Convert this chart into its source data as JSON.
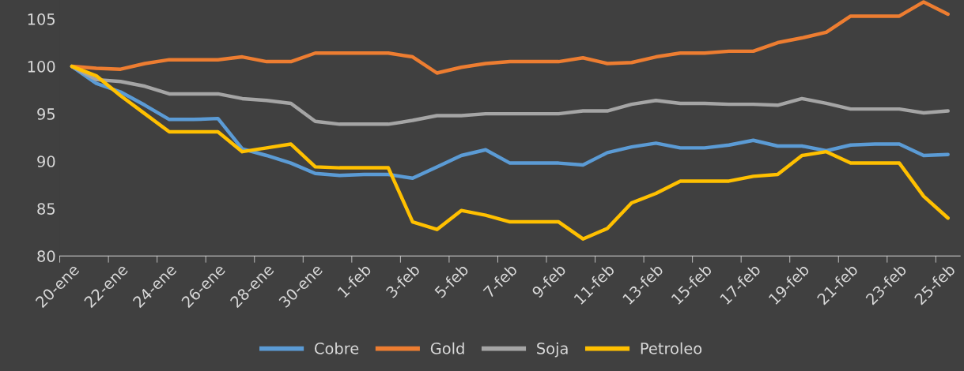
{
  "chart_data": {
    "type": "line",
    "categories": [
      "20-ene",
      null,
      "22-ene",
      null,
      "24-ene",
      null,
      "26-ene",
      null,
      "28-ene",
      null,
      "30-ene",
      null,
      "1-feb",
      null,
      "3-feb",
      null,
      "5-feb",
      null,
      "7-feb",
      null,
      "9-feb",
      null,
      "11-feb",
      null,
      "13-feb",
      null,
      "15-feb",
      null,
      "17-feb",
      null,
      "19-feb",
      null,
      "21-feb",
      null,
      "23-feb",
      null,
      "25-feb"
    ],
    "series": [
      {
        "name": "Cobre",
        "color": "#5b9bd5",
        "values": [
          100,
          98.2,
          97.3,
          95.9,
          94.4,
          94.4,
          94.5,
          91.3,
          90.6,
          89.8,
          88.7,
          88.5,
          88.6,
          88.6,
          88.2,
          89.4,
          90.6,
          91.2,
          89.8,
          89.8,
          89.8,
          89.6,
          90.9,
          91.5,
          91.9,
          91.4,
          91.4,
          91.7,
          92.2,
          91.6,
          91.6,
          91.1,
          91.7,
          91.8,
          91.8,
          90.6,
          90.7
        ]
      },
      {
        "name": "Gold",
        "color": "#ed7d31",
        "values": [
          100,
          99.8,
          99.7,
          100.3,
          100.7,
          100.7,
          100.7,
          101.0,
          100.5,
          100.5,
          101.4,
          101.4,
          101.4,
          101.4,
          101.0,
          99.3,
          99.9,
          100.3,
          100.5,
          100.5,
          100.5,
          100.9,
          100.3,
          100.4,
          101.0,
          101.4,
          101.4,
          101.6,
          101.6,
          102.5,
          103.0,
          103.6,
          105.3,
          105.3,
          105.3,
          106.8,
          105.5
        ]
      },
      {
        "name": "Soja",
        "color": "#a5a5a5",
        "values": [
          100,
          98.6,
          98.4,
          97.9,
          97.1,
          97.1,
          97.1,
          96.6,
          96.4,
          96.1,
          94.2,
          93.9,
          93.9,
          93.9,
          94.3,
          94.8,
          94.8,
          95.0,
          95.0,
          95.0,
          95.0,
          95.3,
          95.3,
          96.0,
          96.4,
          96.1,
          96.1,
          96.0,
          96.0,
          95.9,
          96.6,
          96.1,
          95.5,
          95.5,
          95.5,
          95.1,
          95.3
        ]
      },
      {
        "name": "Petroleo",
        "color": "#ffc000",
        "values": [
          100,
          99.0,
          96.9,
          95.0,
          93.1,
          93.1,
          93.1,
          91.0,
          91.4,
          91.8,
          89.4,
          89.3,
          89.3,
          89.3,
          83.6,
          82.8,
          84.8,
          84.3,
          83.6,
          83.6,
          83.6,
          81.8,
          82.9,
          85.6,
          86.6,
          87.9,
          87.9,
          87.9,
          88.4,
          88.6,
          90.6,
          91.0,
          89.8,
          89.8,
          89.8,
          86.3,
          84.0
        ]
      }
    ],
    "ylim": [
      80,
      107
    ],
    "yticks": [
      80,
      85,
      90,
      95,
      100,
      105
    ],
    "grid": false,
    "legend": "bottom",
    "marker": "none",
    "line_style": "solid"
  }
}
